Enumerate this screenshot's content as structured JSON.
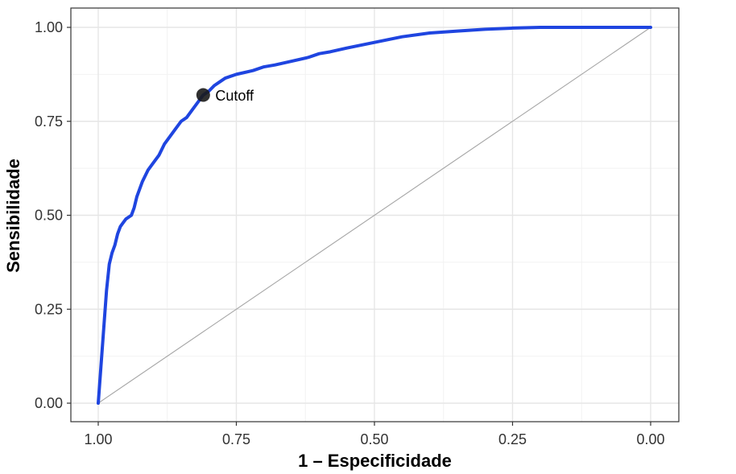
{
  "chart_data": {
    "type": "line",
    "title": "",
    "xlabel": "1 – Especificidade",
    "ylabel": "Sensibilidade",
    "xlim": [
      1.0,
      0.0
    ],
    "ylim": [
      0.0,
      1.0
    ],
    "x_reversed": true,
    "grid": true,
    "x_ticks": [
      1.0,
      0.75,
      0.5,
      0.25,
      0.0
    ],
    "x_tick_labels": [
      "1.00",
      "0.75",
      "0.50",
      "0.25",
      "0.00"
    ],
    "y_ticks": [
      0.0,
      0.25,
      0.5,
      0.75,
      1.0
    ],
    "y_tick_labels": [
      "0.00",
      "0.25",
      "0.50",
      "0.75",
      "1.00"
    ],
    "colors": {
      "curve": "#1f45e0",
      "reference": "#a6a6a6",
      "cutoff_point": "#1a1a1a"
    },
    "series": [
      {
        "x": [
          1.0,
          0.995,
          0.99,
          0.985,
          0.98,
          0.975,
          0.97,
          0.965,
          0.96,
          0.955,
          0.95,
          0.94,
          0.935,
          0.93,
          0.92,
          0.91,
          0.9,
          0.89,
          0.88,
          0.87,
          0.86,
          0.85,
          0.84,
          0.83,
          0.81,
          0.8,
          0.79,
          0.78,
          0.77,
          0.75,
          0.72,
          0.7,
          0.68,
          0.65,
          0.62,
          0.6,
          0.58,
          0.55,
          0.5,
          0.45,
          0.4,
          0.35,
          0.3,
          0.25,
          0.2,
          0.1,
          0.0
        ],
        "y": [
          0.0,
          0.1,
          0.2,
          0.3,
          0.37,
          0.4,
          0.42,
          0.45,
          0.47,
          0.48,
          0.49,
          0.5,
          0.52,
          0.55,
          0.59,
          0.62,
          0.64,
          0.66,
          0.69,
          0.71,
          0.73,
          0.75,
          0.76,
          0.78,
          0.82,
          0.83,
          0.845,
          0.855,
          0.865,
          0.875,
          0.885,
          0.895,
          0.9,
          0.91,
          0.92,
          0.93,
          0.935,
          0.945,
          0.96,
          0.975,
          0.985,
          0.99,
          0.995,
          0.998,
          1.0,
          1.0,
          1.0
        ]
      },
      {
        "x": [
          1.0,
          0.0
        ],
        "y": [
          0.0,
          1.0
        ]
      }
    ],
    "annotations": [
      {
        "text": "Cutoff",
        "x": 0.81,
        "y": 0.82
      }
    ]
  }
}
